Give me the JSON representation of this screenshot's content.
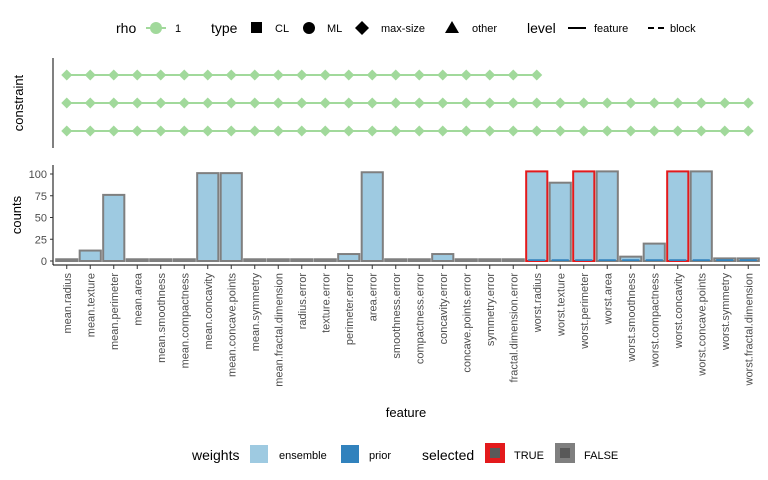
{
  "legend_top": {
    "rho": {
      "title": "rho",
      "items": [
        {
          "label": "1",
          "color": "#a1d99b"
        }
      ]
    },
    "type": {
      "title": "type",
      "items": [
        {
          "label": "CL",
          "shape": "square"
        },
        {
          "label": "ML",
          "shape": "circle"
        },
        {
          "label": "max-size",
          "shape": "diamond"
        },
        {
          "label": "other",
          "shape": "triangle"
        }
      ]
    },
    "level": {
      "title": "level",
      "items": [
        {
          "label": "feature",
          "line": "solid"
        },
        {
          "label": "block",
          "line": "dashed"
        }
      ]
    }
  },
  "legend_bottom": {
    "weights": {
      "title": "weights",
      "items": [
        {
          "label": "ensemble",
          "color": "#9ecae1"
        },
        {
          "label": "prior",
          "color": "#3182bd"
        }
      ]
    },
    "selected": {
      "title": "selected",
      "items": [
        {
          "label": "TRUE",
          "color": "#e31a1c"
        },
        {
          "label": "FALSE",
          "color": "#7f7f7f"
        }
      ]
    }
  },
  "colors": {
    "ensemble": "#9ecae1",
    "prior": "#3182bd",
    "rho_1": "#a1d99b",
    "selected_true": "#e31a1c",
    "selected_false": "#7f7f7f",
    "text": "#4d4d4d"
  },
  "chart_data": [
    {
      "type": "line",
      "panel": "constraint",
      "ylabel": "constraint",
      "x_type": "categorical",
      "shape": "diamond",
      "level": "block",
      "color": "#a1d99b",
      "rows": [
        {
          "row": 1,
          "range": [
            "mean.radius",
            "worst.radius"
          ]
        },
        {
          "row": 2,
          "range": [
            "mean.radius",
            "worst.fractal.dimension"
          ]
        },
        {
          "row": 3,
          "range": [
            "mean.radius",
            "worst.fractal.dimension"
          ]
        }
      ]
    },
    {
      "type": "bar",
      "panel": "counts",
      "xlabel": "feature",
      "ylabel": "counts",
      "ylim": [
        0,
        105
      ],
      "yticks": [
        0,
        25,
        50,
        75,
        100
      ],
      "grid": false,
      "categories": [
        "mean.radius",
        "mean.texture",
        "mean.perimeter",
        "mean.area",
        "mean.smoothness",
        "mean.compactness",
        "mean.concavity",
        "mean.concave.points",
        "mean.symmetry",
        "mean.fractal.dimension",
        "radius.error",
        "texture.error",
        "perimeter.error",
        "area.error",
        "smoothness.error",
        "compactness.error",
        "concavity.error",
        "concave.points.error",
        "symmetry.error",
        "fractal.dimension.error",
        "worst.radius",
        "worst.texture",
        "worst.perimeter",
        "worst.area",
        "worst.smoothness",
        "worst.compactness",
        "worst.concavity",
        "worst.concave.points",
        "worst.symmetry",
        "worst.fractal.dimension"
      ],
      "series": [
        {
          "name": "ensemble",
          "values": [
            0,
            12,
            76,
            0,
            0,
            0,
            101,
            101,
            0,
            0,
            2,
            2,
            8,
            102,
            2,
            2,
            8,
            2,
            2,
            2,
            103,
            90,
            103,
            103,
            5,
            20,
            103,
            103,
            3,
            3
          ]
        },
        {
          "name": "prior",
          "values": [
            0,
            0,
            0,
            0,
            0,
            0,
            0,
            0,
            0,
            0,
            0,
            0,
            0,
            0,
            0,
            0,
            0,
            0,
            0,
            0,
            2,
            2,
            2,
            2,
            2,
            2,
            2,
            2,
            2,
            2
          ]
        }
      ],
      "selected": [
        false,
        false,
        false,
        false,
        false,
        false,
        false,
        false,
        false,
        false,
        false,
        false,
        false,
        false,
        false,
        false,
        false,
        false,
        false,
        false,
        true,
        false,
        true,
        false,
        false,
        false,
        true,
        false,
        false,
        false
      ]
    }
  ]
}
